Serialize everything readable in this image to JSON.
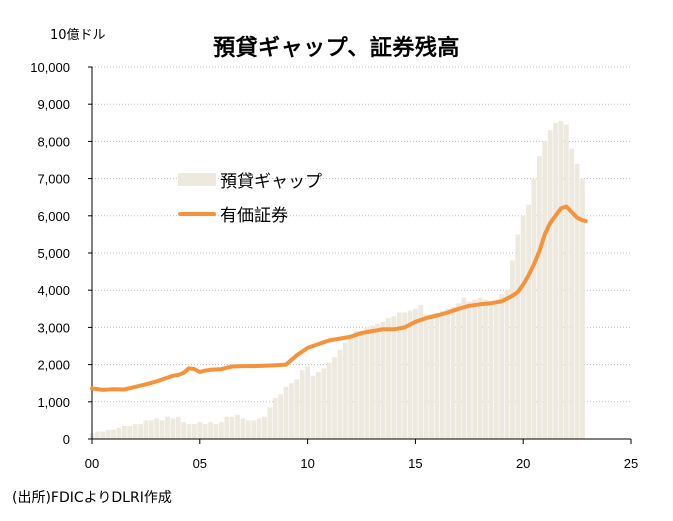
{
  "chart_data": {
    "type": "bar+line",
    "title": "預貸ギャップ、証券残高",
    "unit_label": "10億ドル",
    "source": "(出所)FDICよりDLRI作成",
    "ylim": [
      0,
      10000
    ],
    "xlim": [
      0,
      25
    ],
    "y_ticks": [
      "10,000",
      "9,000",
      "8,000",
      "7,000",
      "6,000",
      "5,000",
      "4,000",
      "3,000",
      "2,000",
      "1,000",
      "0"
    ],
    "x_ticks": [
      "00",
      "05",
      "10",
      "15",
      "20",
      "25"
    ],
    "legend": {
      "placement": "center-left",
      "bar_label": "預貸ギャップ",
      "line_label": "有価証券"
    },
    "colors": {
      "bar": "#ede9de",
      "line": "#f5933c"
    },
    "series": [
      {
        "name": "預貸ギャップ",
        "type": "bar",
        "values": [
          150,
          200,
          200,
          250,
          250,
          300,
          350,
          350,
          400,
          400,
          500,
          500,
          550,
          500,
          600,
          550,
          600,
          450,
          400,
          400,
          450,
          400,
          450,
          400,
          450,
          600,
          600,
          650,
          550,
          500,
          500,
          550,
          600,
          850,
          1100,
          1200,
          1400,
          1500,
          1600,
          1850,
          1950,
          1700,
          1800,
          1900,
          2050,
          2200,
          2400,
          2600,
          2800,
          2900,
          2900,
          3000,
          3050,
          3100,
          3150,
          3250,
          3300,
          3400,
          3400,
          3450,
          3500,
          3600,
          3350,
          3350,
          3400,
          3450,
          3500,
          3550,
          3650,
          3800,
          3700,
          3750,
          3800,
          3750,
          3700,
          3650,
          3900,
          4000,
          4800,
          5500,
          6000,
          6300,
          7000,
          7600,
          8000,
          8300,
          8500,
          8550,
          8450,
          7800,
          7400,
          7000
        ]
      },
      {
        "name": "有価証券",
        "type": "line",
        "points": [
          [
            0,
            1360
          ],
          [
            0.5,
            1320
          ],
          [
            1,
            1340
          ],
          [
            1.5,
            1330
          ],
          [
            2,
            1400
          ],
          [
            2.5,
            1470
          ],
          [
            3,
            1550
          ],
          [
            3.5,
            1650
          ],
          [
            3.75,
            1700
          ],
          [
            4,
            1720
          ],
          [
            4.25,
            1780
          ],
          [
            4.5,
            1900
          ],
          [
            4.75,
            1880
          ],
          [
            5,
            1800
          ],
          [
            5.25,
            1840
          ],
          [
            5.5,
            1860
          ],
          [
            6,
            1880
          ],
          [
            6.5,
            1950
          ],
          [
            7,
            1960
          ],
          [
            7.5,
            1960
          ],
          [
            8,
            1970
          ],
          [
            8.5,
            1980
          ],
          [
            9,
            2000
          ],
          [
            9.5,
            2250
          ],
          [
            10,
            2450
          ],
          [
            10.5,
            2550
          ],
          [
            11,
            2650
          ],
          [
            11.5,
            2700
          ],
          [
            12,
            2750
          ],
          [
            12.5,
            2850
          ],
          [
            13,
            2900
          ],
          [
            13.5,
            2950
          ],
          [
            14,
            2950
          ],
          [
            14.5,
            3000
          ],
          [
            15,
            3150
          ],
          [
            15.5,
            3250
          ],
          [
            16,
            3320
          ],
          [
            16.5,
            3400
          ],
          [
            17,
            3500
          ],
          [
            17.5,
            3580
          ],
          [
            18,
            3620
          ],
          [
            18.5,
            3650
          ],
          [
            19,
            3700
          ],
          [
            19.5,
            3850
          ],
          [
            19.75,
            3950
          ],
          [
            20,
            4150
          ],
          [
            20.25,
            4400
          ],
          [
            20.5,
            4700
          ],
          [
            20.75,
            5050
          ],
          [
            21,
            5500
          ],
          [
            21.25,
            5800
          ],
          [
            21.5,
            6000
          ],
          [
            21.75,
            6200
          ],
          [
            22,
            6250
          ],
          [
            22.25,
            6100
          ],
          [
            22.5,
            5950
          ],
          [
            22.75,
            5880
          ],
          [
            22.9,
            5860
          ]
        ]
      }
    ]
  }
}
